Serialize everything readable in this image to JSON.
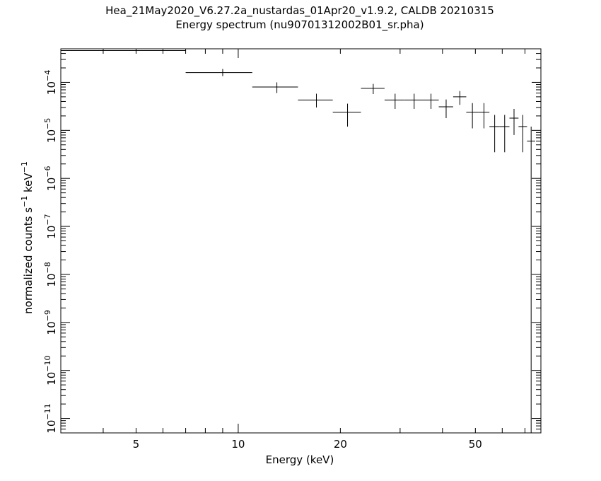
{
  "chart_data": {
    "type": "scatter",
    "title": "Hea_21May2020_V6.27.2a_nustardas_01Apr20_v1.9.2, CALDB 20210315",
    "subtitle": "Energy spectrum (nu90701312002B01_sr.pha)",
    "xlabel": "Energy (keV)",
    "ylabel": {
      "base": "normalized counts s",
      "sup1": "−1",
      "mid": " keV",
      "sup2": "−1"
    },
    "x_scale": "log",
    "y_scale": "log",
    "xlim": [
      3.0,
      78.0
    ],
    "ylim": [
      5e-12,
      0.0005
    ],
    "x_ticks": [
      {
        "value": 5,
        "label": "5"
      },
      {
        "value": 10,
        "label": "10"
      },
      {
        "value": 20,
        "label": "20"
      },
      {
        "value": 50,
        "label": "50"
      }
    ],
    "y_ticks": [
      {
        "value": 1e-11,
        "base": "10",
        "exp": "−11"
      },
      {
        "value": 1e-10,
        "base": "10",
        "exp": "−10"
      },
      {
        "value": 1e-09,
        "base": "10",
        "exp": "−9"
      },
      {
        "value": 1e-08,
        "base": "10",
        "exp": "−8"
      },
      {
        "value": 1e-07,
        "base": "10",
        "exp": "−7"
      },
      {
        "value": 1e-06,
        "base": "10",
        "exp": "−6"
      },
      {
        "value": 1e-05,
        "base": "10",
        "exp": "−5"
      },
      {
        "value": 0.0001,
        "base": "10",
        "exp": "−4"
      }
    ],
    "grid": false,
    "color": "#000000",
    "points": [
      {
        "x": 5.0,
        "xlo": 3.0,
        "xhi": 7.0,
        "y": 0.00046,
        "ylo": 0.00042,
        "yhi": 0.0005
      },
      {
        "x": 9.0,
        "xlo": 7.0,
        "xhi": 11.0,
        "y": 0.00016,
        "ylo": 0.000135,
        "yhi": 0.00019
      },
      {
        "x": 13.0,
        "xlo": 11.0,
        "xhi": 15.0,
        "y": 8e-05,
        "ylo": 6e-05,
        "yhi": 0.0001
      },
      {
        "x": 17.0,
        "xlo": 15.0,
        "xhi": 19.0,
        "y": 4.3e-05,
        "ylo": 3e-05,
        "yhi": 5.8e-05
      },
      {
        "x": 21.0,
        "xlo": 19.0,
        "xhi": 23.0,
        "y": 2.4e-05,
        "ylo": 1.2e-05,
        "yhi": 3.6e-05
      },
      {
        "x": 25.0,
        "xlo": 23.0,
        "xhi": 27.0,
        "y": 7.5e-05,
        "ylo": 5.7e-05,
        "yhi": 9.3e-05
      },
      {
        "x": 29.0,
        "xlo": 27.0,
        "xhi": 31.0,
        "y": 4.3e-05,
        "ylo": 2.8e-05,
        "yhi": 5.8e-05
      },
      {
        "x": 33.0,
        "xlo": 31.0,
        "xhi": 35.0,
        "y": 4.3e-05,
        "ylo": 2.8e-05,
        "yhi": 5.8e-05
      },
      {
        "x": 37.0,
        "xlo": 35.0,
        "xhi": 39.0,
        "y": 4.3e-05,
        "ylo": 2.8e-05,
        "yhi": 5.8e-05
      },
      {
        "x": 41.0,
        "xlo": 39.0,
        "xhi": 43.0,
        "y": 3.1e-05,
        "ylo": 1.8e-05,
        "yhi": 4.4e-05
      },
      {
        "x": 45.0,
        "xlo": 43.0,
        "xhi": 47.0,
        "y": 5e-05,
        "ylo": 3.4e-05,
        "yhi": 6.6e-05
      },
      {
        "x": 49.0,
        "xlo": 47.0,
        "xhi": 51.0,
        "y": 2.4e-05,
        "ylo": 1.1e-05,
        "yhi": 3.7e-05
      },
      {
        "x": 53.0,
        "xlo": 51.0,
        "xhi": 55.0,
        "y": 2.4e-05,
        "ylo": 1.1e-05,
        "yhi": 3.7e-05
      },
      {
        "x": 57.0,
        "xlo": 55.0,
        "xhi": 59.0,
        "y": 1.2e-05,
        "ylo": 3.5e-06,
        "yhi": 2.1e-05
      },
      {
        "x": 61.0,
        "xlo": 59.0,
        "xhi": 63.0,
        "y": 1.2e-05,
        "ylo": 3.5e-06,
        "yhi": 2.1e-05
      },
      {
        "x": 65.0,
        "xlo": 63.0,
        "xhi": 67.0,
        "y": 1.8e-05,
        "ylo": 8e-06,
        "yhi": 2.8e-05
      },
      {
        "x": 69.0,
        "xlo": 67.0,
        "xhi": 71.0,
        "y": 1.2e-05,
        "ylo": 3.5e-06,
        "yhi": 2.1e-05
      },
      {
        "x": 73.0,
        "xlo": 71.0,
        "xhi": 75.0,
        "y": 6e-06,
        "ylo": 5e-12,
        "yhi": 1.2e-05
      }
    ]
  }
}
